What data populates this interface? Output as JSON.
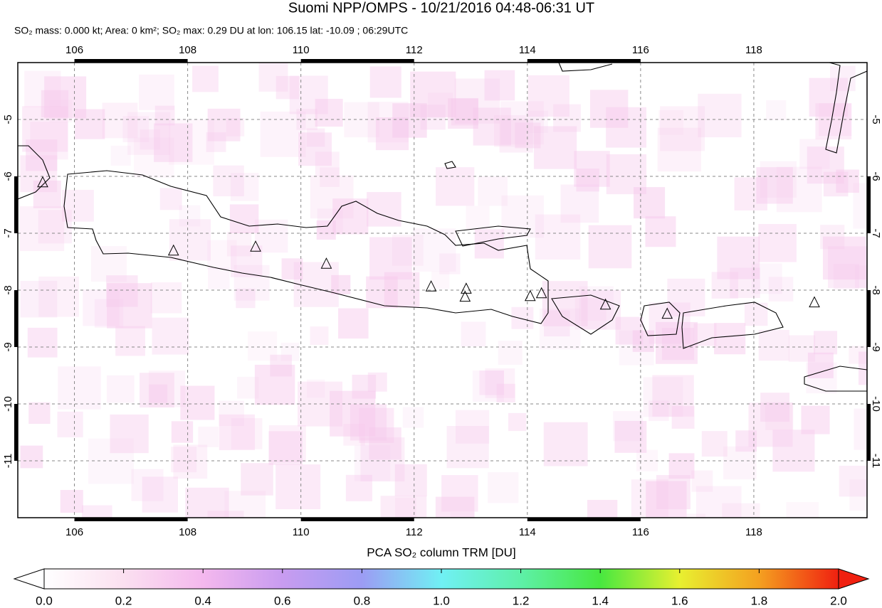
{
  "chart_data": {
    "type": "map",
    "title": "Suomi NPP/OMPS - 10/21/2016 04:48-06:31 UT",
    "subtitle": "SO₂ mass: 0.000 kt; Area: 0 km²; SO₂ max: 0.29 DU at lon: 106.15 lat: -10.09 ; 06:29UTC",
    "xlim": [
      105,
      120
    ],
    "ylim": [
      -12,
      -4
    ],
    "xticks": [
      106,
      108,
      110,
      112,
      114,
      116,
      118
    ],
    "yticks": [
      -5,
      -6,
      -7,
      -8,
      -9,
      -10,
      -11
    ],
    "grid": true,
    "volcanoes": {
      "lon": [
        105.44,
        107.75,
        109.2,
        110.45,
        112.3,
        112.92,
        112.9,
        114.05,
        114.25,
        115.38,
        116.47,
        119.07
      ],
      "lat": [
        -6.11,
        -7.31,
        -7.24,
        -7.54,
        -7.94,
        -7.98,
        -8.12,
        -8.11,
        -8.06,
        -8.26,
        -8.42,
        -8.22
      ]
    },
    "colorbar": {
      "label": "PCA SO₂ column TRM [DU]",
      "lim": [
        0,
        2
      ],
      "ticks": [
        {
          "value": 0,
          "label": "0.0"
        },
        {
          "value": 0.2,
          "label": "0.2"
        },
        {
          "value": 0.4,
          "label": "0.4"
        },
        {
          "value": 0.6,
          "label": "0.6"
        },
        {
          "value": 0.8,
          "label": "0.8"
        },
        {
          "value": 1,
          "label": "1.0"
        },
        {
          "value": 1.2,
          "label": "1.2"
        },
        {
          "value": 1.4,
          "label": "1.4"
        },
        {
          "value": 1.6,
          "label": "1.6"
        },
        {
          "value": 1.8,
          "label": "1.8"
        },
        {
          "value": 2,
          "label": "2.0"
        }
      ]
    }
  }
}
